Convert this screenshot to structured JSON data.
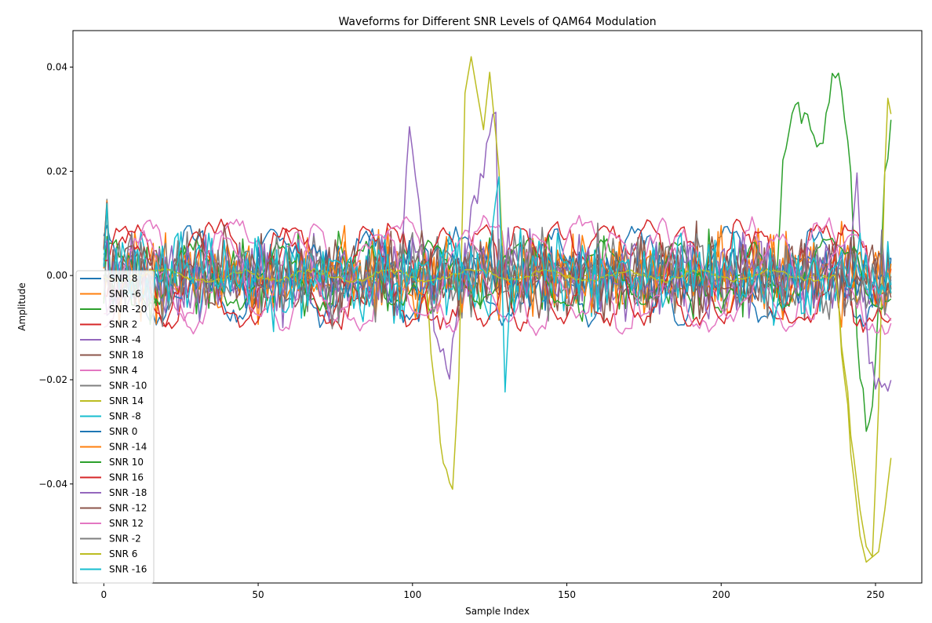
{
  "chart_data": {
    "type": "line",
    "title": "Waveforms for Different SNR Levels of QAM64 Modulation",
    "xlabel": "Sample Index",
    "ylabel": "Amplitude",
    "xlim": [
      -10,
      265
    ],
    "ylim": [
      -0.059,
      0.047
    ],
    "xticks": [
      0,
      50,
      100,
      150,
      200,
      250
    ],
    "xtick_labels": [
      "0",
      "50",
      "100",
      "150",
      "200",
      "250"
    ],
    "yticks": [
      -0.04,
      -0.02,
      0.0,
      0.02,
      0.04
    ],
    "ytick_labels": [
      "−0.04",
      "−0.02",
      "0.00",
      "0.02",
      "0.04"
    ],
    "grid": false,
    "legend_position": "lower-left",
    "x": "0..255 (256 samples per series)",
    "series": [
      {
        "name": "SNR 8",
        "color": "#1f77b4",
        "kind": "smooth",
        "amp": 0.0085,
        "noise": 0.0015,
        "seed": 11
      },
      {
        "name": "SNR -6",
        "color": "#ff7f0e",
        "kind": "noise",
        "amp": 0.0065,
        "seed": 12
      },
      {
        "name": "SNR -20",
        "color": "#2ca02c",
        "kind": "noise",
        "amp": 0.0065,
        "seed": 13,
        "excursion": {
          "x": [
            218,
            220,
            224,
            228,
            232,
            236,
            238,
            241,
            245,
            247,
            249,
            251,
            253,
            255
          ],
          "y": [
            0.0,
            0.022,
            0.032,
            0.029,
            0.024,
            0.037,
            0.039,
            0.026,
            -0.018,
            -0.028,
            -0.026,
            -0.005,
            0.018,
            0.029
          ]
        }
      },
      {
        "name": "SNR 2",
        "color": "#d62728",
        "kind": "smooth",
        "amp": 0.0095,
        "noise": 0.0015,
        "seed": 14
      },
      {
        "name": "SNR -4",
        "color": "#9467bd",
        "kind": "noise",
        "amp": 0.0065,
        "seed": 15,
        "excursion": {
          "x": [
            97,
            99,
            101,
            104,
            108,
            112,
            114,
            117,
            120,
            123,
            125,
            127
          ],
          "y": [
            0.008,
            0.029,
            0.018,
            0.005,
            -0.012,
            -0.018,
            -0.01,
            0.004,
            0.014,
            0.02,
            0.027,
            0.031
          ]
        }
      },
      {
        "name": "SNR 18",
        "color": "#8c564b",
        "kind": "noise",
        "amp": 0.0065,
        "seed": 16
      },
      {
        "name": "SNR 4",
        "color": "#e377c2",
        "kind": "smooth",
        "amp": 0.0105,
        "noise": 0.0012,
        "seed": 17
      },
      {
        "name": "SNR -10",
        "color": "#7f7f7f",
        "kind": "noise",
        "amp": 0.0065,
        "seed": 18
      },
      {
        "name": "SNR 14",
        "color": "#bcbd22",
        "kind": "smooth",
        "amp": 0.0012,
        "noise": 0.0004,
        "seed": 19,
        "excursion": {
          "x": [
            104,
            107,
            110,
            113,
            115,
            117,
            119,
            121,
            123,
            125,
            127,
            130,
            237,
            240,
            243,
            245,
            247,
            249,
            251,
            253,
            254,
            255
          ],
          "y": [
            0.0,
            -0.02,
            -0.036,
            -0.041,
            -0.02,
            0.035,
            0.042,
            0.035,
            0.028,
            0.039,
            0.027,
            0.0,
            0.0,
            -0.02,
            -0.039,
            -0.05,
            -0.055,
            -0.054,
            -0.025,
            0.02,
            0.034,
            0.031
          ]
        }
      },
      {
        "name": "SNR -8",
        "color": "#17becf",
        "kind": "noise",
        "amp": 0.0065,
        "seed": 20
      },
      {
        "name": "SNR 0",
        "color": "#1f77b4",
        "kind": "noise",
        "amp": 0.0055,
        "seed": 21
      },
      {
        "name": "SNR -14",
        "color": "#ff7f0e",
        "kind": "noise",
        "amp": 0.0065,
        "seed": 22
      },
      {
        "name": "SNR 10",
        "color": "#2ca02c",
        "kind": "smooth",
        "amp": 0.006,
        "noise": 0.0012,
        "seed": 23
      },
      {
        "name": "SNR 16",
        "color": "#d62728",
        "kind": "smooth",
        "amp": 0.009,
        "noise": 0.001,
        "seed": 24
      },
      {
        "name": "SNR -18",
        "color": "#9467bd",
        "kind": "noise",
        "amp": 0.0065,
        "seed": 25,
        "excursion": {
          "x": [
            242,
            244,
            246,
            248,
            250,
            252,
            255
          ],
          "y": [
            0.005,
            0.019,
            -0.002,
            -0.015,
            -0.02,
            -0.021,
            -0.022
          ]
        }
      },
      {
        "name": "SNR -12",
        "color": "#8c564b",
        "kind": "noise",
        "amp": 0.0065,
        "seed": 26
      },
      {
        "name": "SNR 12",
        "color": "#e377c2",
        "kind": "smooth",
        "amp": 0.008,
        "noise": 0.001,
        "seed": 27
      },
      {
        "name": "SNR -2",
        "color": "#7f7f7f",
        "kind": "noise",
        "amp": 0.0065,
        "seed": 28
      },
      {
        "name": "SNR 6",
        "color": "#bcbd22",
        "kind": "smooth",
        "amp": 0.001,
        "noise": 0.0004,
        "seed": 29,
        "excursion": {
          "x": [
            237,
            240,
            243,
            245,
            247,
            249,
            251,
            253,
            254,
            255
          ],
          "y": [
            0.0,
            -0.018,
            -0.035,
            -0.045,
            -0.052,
            -0.054,
            -0.053,
            -0.045,
            -0.04,
            -0.035
          ]
        }
      },
      {
        "name": "SNR -16",
        "color": "#17becf",
        "kind": "noise",
        "amp": 0.0065,
        "seed": 30,
        "excursion": {
          "x": [
            125,
            128,
            130,
            132
          ],
          "y": [
            0.005,
            0.019,
            -0.023,
            0.0
          ]
        }
      }
    ]
  }
}
